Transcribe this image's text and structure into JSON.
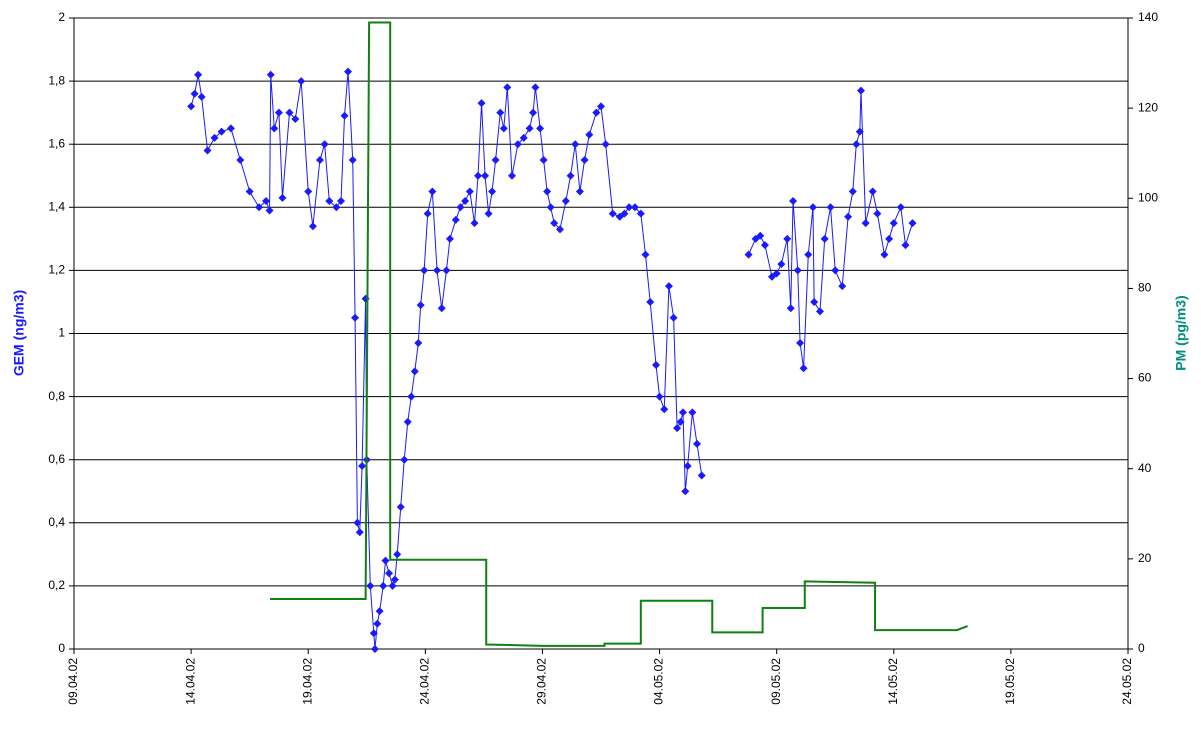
{
  "chart_data": {
    "type": "line",
    "ylabel": "GEM (ng/m3)",
    "y2label": "PM (pg/m3)",
    "xlim": [
      37355,
      37400
    ],
    "xticks": [
      {
        "value": 37355,
        "label": "09.04.02"
      },
      {
        "value": 37360,
        "label": "14.04.02"
      },
      {
        "value": 37365,
        "label": "19.04.02"
      },
      {
        "value": 37370,
        "label": "24.04.02"
      },
      {
        "value": 37375,
        "label": "29.04.02"
      },
      {
        "value": 37380,
        "label": "04.05.02"
      },
      {
        "value": 37385,
        "label": "09.05.02"
      },
      {
        "value": 37390,
        "label": "14.05.02"
      },
      {
        "value": 37395,
        "label": "19.05.02"
      },
      {
        "value": 37400,
        "label": "24.05.02"
      }
    ],
    "ylim": [
      0,
      2
    ],
    "yticks": [
      0,
      {
        "value": 0.2,
        "label": "0,2"
      },
      {
        "value": 0.4,
        "label": "0,4"
      },
      {
        "value": 0.6,
        "label": "0,6"
      },
      {
        "value": 0.8,
        "label": "0,8"
      },
      1,
      {
        "value": 1.2,
        "label": "1,2"
      },
      {
        "value": 1.4,
        "label": "1,4"
      },
      {
        "value": 1.6,
        "label": "1,6"
      },
      {
        "value": 1.8,
        "label": "1,8"
      },
      2
    ],
    "y2lim": [
      0,
      140
    ],
    "y2ticks": [
      0,
      20,
      40,
      60,
      80,
      100,
      120,
      140
    ],
    "grid": true,
    "series": [
      {
        "color": "#1a1aff",
        "marker": "diamond",
        "x": [
          37360.0,
          37360.15,
          37360.3,
          37360.45,
          37360.7,
          37361.0,
          37361.3,
          37361.7,
          37362.1,
          37362.5,
          37362.9,
          37363.2,
          37363.35,
          37363.4,
          37363.55,
          37363.75,
          37363.9,
          37364.2,
          37364.45,
          37364.7,
          37365.0,
          37365.2,
          37365.5,
          37365.7,
          37365.9,
          37366.2,
          37366.4,
          37366.55,
          37366.7,
          37366.9,
          37367.0,
          37367.1,
          37367.2,
          37367.3,
          37367.45,
          37367.5,
          37367.65,
          37367.8,
          37367.85,
          37367.95,
          37368.05,
          37368.2,
          37368.3,
          37368.45,
          37368.6,
          37368.7,
          37368.8,
          37368.95,
          37369.1,
          37369.25,
          37369.4,
          37369.55,
          37369.7,
          37369.8,
          37369.95,
          37370.1,
          37370.3,
          37370.5,
          37370.7,
          37370.9,
          37371.05,
          37371.3,
          37371.5,
          37371.7,
          37371.9,
          37372.1,
          37372.25,
          37372.4,
          37372.55,
          37372.7,
          37372.85,
          37373.0,
          37373.2,
          37373.35,
          37373.5,
          37373.7,
          37373.95,
          37374.2,
          37374.45,
          37374.6,
          37374.7,
          37374.9,
          37375.05,
          37375.2,
          37375.35,
          37375.5,
          37375.75,
          37376.0,
          37376.2,
          37376.4,
          37376.6,
          37376.8,
          37377.0,
          37377.3,
          37377.5,
          37377.7,
          37378.0,
          37378.3,
          37378.5,
          37378.7,
          37378.95,
          37379.2,
          37379.4,
          37379.6,
          37379.85,
          37380.0,
          37380.2,
          37380.4,
          37380.6,
          37380.75,
          37380.9,
          37381.0,
          37381.1,
          37381.2,
          37381.4,
          37381.6,
          37381.8,
          37382.8,
          37383.8,
          37384.1,
          37384.3,
          37384.5,
          37384.8,
          37385.0,
          37385.2,
          37385.45,
          37385.6,
          37385.7,
          37385.9,
          37386.0,
          37386.15,
          37386.35,
          37386.55,
          37386.6,
          37386.85,
          37387.05,
          37387.3,
          37387.5,
          37387.8,
          37388.05,
          37388.25,
          37388.4,
          37388.55,
          37388.6,
          37388.8,
          37389.1,
          37389.3,
          37389.6,
          37389.8,
          37390.0,
          37390.3,
          37390.5,
          37390.8
        ],
        "values": [
          1.72,
          1.76,
          1.82,
          1.75,
          1.58,
          1.62,
          1.64,
          1.65,
          1.55,
          1.45,
          1.4,
          1.42,
          1.39,
          1.82,
          1.65,
          1.7,
          1.43,
          1.7,
          1.68,
          1.8,
          1.45,
          1.34,
          1.55,
          1.6,
          1.42,
          1.4,
          1.42,
          1.69,
          1.83,
          1.55,
          1.05,
          0.4,
          0.37,
          0.58,
          1.11,
          0.6,
          0.2,
          0.05,
          0,
          0.08,
          0.12,
          0.2,
          0.28,
          0.24,
          0.2,
          0.22,
          0.3,
          0.45,
          0.6,
          0.72,
          0.8,
          0.88,
          0.97,
          1.09,
          1.2,
          1.38,
          1.45,
          1.2,
          1.08,
          1.2,
          1.3,
          1.36,
          1.4,
          1.42,
          1.45,
          1.35,
          1.5,
          1.73,
          1.5,
          1.38,
          1.45,
          1.55,
          1.7,
          1.65,
          1.78,
          1.5,
          1.6,
          1.62,
          1.65,
          1.7,
          1.78,
          1.65,
          1.55,
          1.45,
          1.4,
          1.35,
          1.33,
          1.42,
          1.5,
          1.6,
          1.45,
          1.55,
          1.63,
          1.7,
          1.72,
          1.6,
          1.38,
          1.37,
          1.38,
          1.4,
          1.4,
          1.38,
          1.25,
          1.1,
          0.9,
          0.8,
          0.76,
          1.15,
          1.05,
          0.7,
          0.72,
          0.75,
          0.5,
          0.58,
          0.75,
          0.65,
          0.55,
          null,
          1.25,
          1.3,
          1.31,
          1.28,
          1.18,
          1.19,
          1.22,
          1.3,
          1.08,
          1.42,
          1.2,
          0.97,
          0.89,
          1.25,
          1.4,
          1.1,
          1.07,
          1.3,
          1.4,
          1.2,
          1.15,
          1.37,
          1.45,
          1.6,
          1.64,
          1.77,
          1.35,
          1.45,
          1.38,
          1.25,
          1.3,
          1.35,
          1.4,
          1.28,
          1.35
        ]
      },
      {
        "color": "#108010",
        "axis": "y2",
        "x": [
          37363.37,
          37367.45,
          37367.6,
          37368.5,
          37368.5,
          37372.6,
          37372.6,
          37375.0,
          37377.65,
          37377.65,
          37379.2,
          37379.2,
          37382.25,
          37382.25,
          37384.4,
          37384.4,
          37386.2,
          37386.2,
          37389.2,
          37389.2,
          37392.7,
          37393.15
        ],
        "values": [
          11.1,
          11.1,
          139,
          139,
          19.8,
          19.8,
          1.0,
          0.7,
          0.7,
          1.2,
          1.2,
          10.7,
          10.7,
          3.7,
          3.7,
          9.1,
          9.1,
          15.0,
          14.7,
          4.2,
          4.2,
          5.1
        ]
      }
    ]
  }
}
